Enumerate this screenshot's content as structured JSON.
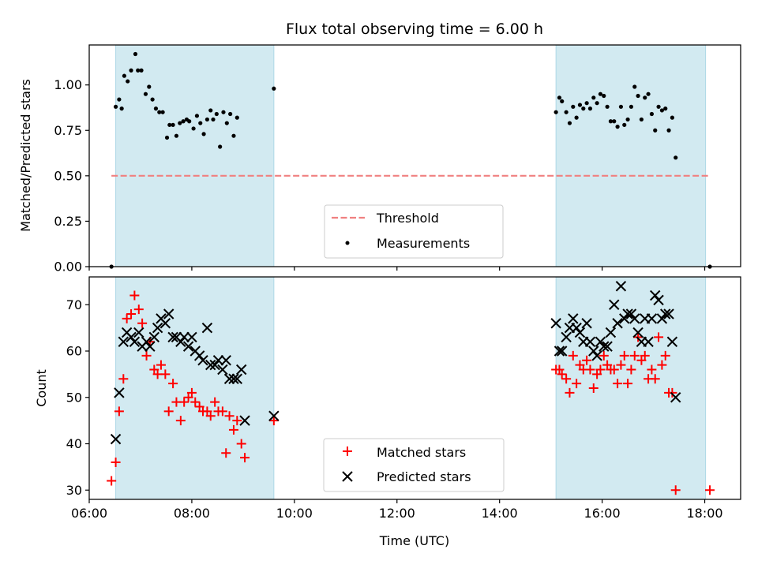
{
  "chart_data": [
    {
      "type": "scatter",
      "title": "Flux total observing time = 6.00 h",
      "xlabel": "",
      "ylabel": "Matched/Predicted stars",
      "xlim": [
        "06:00",
        "18:42"
      ],
      "ylim": [
        0,
        1.22
      ],
      "yticks": [
        0.0,
        0.25,
        0.5,
        0.75,
        1.0
      ],
      "ytick_labels": [
        "0.00",
        "0.25",
        "0.50",
        "0.75",
        "1.00"
      ],
      "shaded_intervals": [
        [
          "06:31",
          "09:36"
        ],
        [
          "15:06",
          "18:01"
        ]
      ],
      "shade_color": "#add8e6",
      "legend": {
        "position": "lower-center",
        "entries": [
          "Threshold",
          "Measurements"
        ]
      },
      "threshold": {
        "name": "Threshold",
        "y": 0.5,
        "x_range": [
          "06:26",
          "18:06"
        ],
        "color": "#f08080",
        "style": "dashed"
      },
      "series": [
        {
          "name": "Measurements",
          "marker": "dot",
          "color": "#000000",
          "points": [
            [
              "06:26",
              0.0
            ],
            [
              "06:31",
              0.88
            ],
            [
              "06:35",
              0.92
            ],
            [
              "06:38",
              0.87
            ],
            [
              "06:41",
              1.05
            ],
            [
              "06:45",
              1.02
            ],
            [
              "06:49",
              1.08
            ],
            [
              "06:54",
              1.17
            ],
            [
              "06:57",
              1.08
            ],
            [
              "07:01",
              1.08
            ],
            [
              "07:06",
              0.95
            ],
            [
              "07:10",
              0.99
            ],
            [
              "07:14",
              0.92
            ],
            [
              "07:18",
              0.87
            ],
            [
              "07:22",
              0.85
            ],
            [
              "07:26",
              0.85
            ],
            [
              "07:31",
              0.71
            ],
            [
              "07:34",
              0.78
            ],
            [
              "07:38",
              0.78
            ],
            [
              "07:42",
              0.72
            ],
            [
              "07:46",
              0.79
            ],
            [
              "07:50",
              0.8
            ],
            [
              "07:54",
              0.81
            ],
            [
              "07:57",
              0.8
            ],
            [
              "08:02",
              0.76
            ],
            [
              "08:06",
              0.83
            ],
            [
              "08:10",
              0.79
            ],
            [
              "08:14",
              0.73
            ],
            [
              "08:18",
              0.81
            ],
            [
              "08:22",
              0.86
            ],
            [
              "08:25",
              0.81
            ],
            [
              "08:29",
              0.84
            ],
            [
              "08:33",
              0.66
            ],
            [
              "08:37",
              0.85
            ],
            [
              "08:41",
              0.79
            ],
            [
              "08:45",
              0.84
            ],
            [
              "08:49",
              0.72
            ],
            [
              "08:53",
              0.82
            ],
            [
              "09:36",
              0.98
            ],
            [
              "15:06",
              0.85
            ],
            [
              "15:10",
              0.93
            ],
            [
              "15:13",
              0.91
            ],
            [
              "15:18",
              0.85
            ],
            [
              "15:22",
              0.79
            ],
            [
              "15:26",
              0.88
            ],
            [
              "15:30",
              0.82
            ],
            [
              "15:34",
              0.89
            ],
            [
              "15:38",
              0.87
            ],
            [
              "15:42",
              0.9
            ],
            [
              "15:46",
              0.87
            ],
            [
              "15:50",
              0.93
            ],
            [
              "15:54",
              0.9
            ],
            [
              "15:58",
              0.95
            ],
            [
              "16:02",
              0.94
            ],
            [
              "16:06",
              0.88
            ],
            [
              "16:10",
              0.8
            ],
            [
              "16:14",
              0.8
            ],
            [
              "16:18",
              0.77
            ],
            [
              "16:22",
              0.88
            ],
            [
              "16:26",
              0.78
            ],
            [
              "16:30",
              0.81
            ],
            [
              "16:34",
              0.88
            ],
            [
              "16:38",
              0.99
            ],
            [
              "16:42",
              0.94
            ],
            [
              "16:46",
              0.81
            ],
            [
              "16:50",
              0.93
            ],
            [
              "16:54",
              0.95
            ],
            [
              "16:58",
              0.84
            ],
            [
              "17:02",
              0.75
            ],
            [
              "17:06",
              0.88
            ],
            [
              "17:10",
              0.86
            ],
            [
              "17:14",
              0.87
            ],
            [
              "17:18",
              0.75
            ],
            [
              "17:22",
              0.82
            ],
            [
              "17:26",
              0.6
            ],
            [
              "18:06",
              0.0
            ]
          ]
        }
      ]
    },
    {
      "type": "scatter",
      "title": "",
      "xlabel": "Time (UTC)",
      "ylabel": "Count",
      "xlim": [
        "06:00",
        "18:42"
      ],
      "ylim": [
        28,
        76
      ],
      "yticks": [
        30,
        40,
        50,
        60,
        70
      ],
      "ytick_labels": [
        "30",
        "40",
        "50",
        "60",
        "70"
      ],
      "xticks": [
        "06:00",
        "08:00",
        "10:00",
        "12:00",
        "14:00",
        "16:00",
        "18:00"
      ],
      "xtick_labels": [
        "06:00",
        "08:00",
        "10:00",
        "12:00",
        "14:00",
        "16:00",
        "18:00"
      ],
      "shaded_intervals": [
        [
          "06:31",
          "09:36"
        ],
        [
          "15:06",
          "18:01"
        ]
      ],
      "shade_color": "#add8e6",
      "legend": {
        "position": "lower-center",
        "entries": [
          "Matched stars",
          "Predicted stars"
        ]
      },
      "series": [
        {
          "name": "Matched stars",
          "marker": "plus",
          "color": "#ff0000",
          "points": [
            [
              "06:26",
              32
            ],
            [
              "06:31",
              36
            ],
            [
              "06:35",
              47
            ],
            [
              "06:40",
              54
            ],
            [
              "06:44",
              67
            ],
            [
              "06:49",
              68
            ],
            [
              "06:53",
              72
            ],
            [
              "06:58",
              69
            ],
            [
              "07:02",
              66
            ],
            [
              "07:07",
              59
            ],
            [
              "07:11",
              62
            ],
            [
              "07:16",
              56
            ],
            [
              "07:20",
              55
            ],
            [
              "07:24",
              57
            ],
            [
              "07:29",
              55
            ],
            [
              "07:33",
              47
            ],
            [
              "07:38",
              53
            ],
            [
              "07:42",
              49
            ],
            [
              "07:47",
              45
            ],
            [
              "07:51",
              49
            ],
            [
              "07:56",
              50
            ],
            [
              "08:00",
              51
            ],
            [
              "08:04",
              49
            ],
            [
              "08:09",
              48
            ],
            [
              "08:13",
              47
            ],
            [
              "08:18",
              47
            ],
            [
              "08:22",
              46
            ],
            [
              "08:27",
              49
            ],
            [
              "08:31",
              47
            ],
            [
              "08:36",
              47
            ],
            [
              "08:40",
              38
            ],
            [
              "08:44",
              46
            ],
            [
              "08:49",
              43
            ],
            [
              "08:53",
              45
            ],
            [
              "08:58",
              40
            ],
            [
              "09:02",
              37
            ],
            [
              "09:36",
              45
            ],
            [
              "15:06",
              56
            ],
            [
              "15:10",
              56
            ],
            [
              "15:13",
              55
            ],
            [
              "15:18",
              54
            ],
            [
              "15:22",
              51
            ],
            [
              "15:26",
              59
            ],
            [
              "15:30",
              53
            ],
            [
              "15:34",
              57
            ],
            [
              "15:38",
              56
            ],
            [
              "15:42",
              58
            ],
            [
              "15:46",
              56
            ],
            [
              "15:50",
              52
            ],
            [
              "15:54",
              55
            ],
            [
              "15:58",
              56
            ],
            [
              "16:02",
              59
            ],
            [
              "16:06",
              57
            ],
            [
              "16:10",
              56
            ],
            [
              "16:14",
              56
            ],
            [
              "16:18",
              53
            ],
            [
              "16:22",
              57
            ],
            [
              "16:26",
              59
            ],
            [
              "16:30",
              53
            ],
            [
              "16:34",
              56
            ],
            [
              "16:38",
              59
            ],
            [
              "16:42",
              63
            ],
            [
              "16:46",
              58
            ],
            [
              "16:50",
              59
            ],
            [
              "16:54",
              54
            ],
            [
              "16:58",
              56
            ],
            [
              "17:02",
              54
            ],
            [
              "17:06",
              63
            ],
            [
              "17:10",
              57
            ],
            [
              "17:14",
              59
            ],
            [
              "17:18",
              51
            ],
            [
              "17:22",
              51
            ],
            [
              "17:26",
              30
            ],
            [
              "18:06",
              30
            ]
          ]
        },
        {
          "name": "Predicted stars",
          "marker": "x",
          "color": "#000000",
          "points": [
            [
              "06:31",
              41
            ],
            [
              "06:35",
              51
            ],
            [
              "06:40",
              62
            ],
            [
              "06:44",
              64
            ],
            [
              "06:49",
              63
            ],
            [
              "06:53",
              62
            ],
            [
              "06:58",
              64
            ],
            [
              "07:02",
              61
            ],
            [
              "07:07",
              62
            ],
            [
              "07:11",
              61
            ],
            [
              "07:16",
              63
            ],
            [
              "07:20",
              65
            ],
            [
              "07:24",
              67
            ],
            [
              "07:29",
              66
            ],
            [
              "07:33",
              68
            ],
            [
              "07:38",
              63
            ],
            [
              "07:42",
              63
            ],
            [
              "07:47",
              62
            ],
            [
              "07:51",
              63
            ],
            [
              "07:56",
              61
            ],
            [
              "08:00",
              63
            ],
            [
              "08:04",
              60
            ],
            [
              "08:09",
              59
            ],
            [
              "08:13",
              58
            ],
            [
              "08:18",
              65
            ],
            [
              "08:22",
              57
            ],
            [
              "08:27",
              57
            ],
            [
              "08:31",
              58
            ],
            [
              "08:36",
              56
            ],
            [
              "08:40",
              58
            ],
            [
              "08:44",
              54
            ],
            [
              "08:49",
              54
            ],
            [
              "08:53",
              54
            ],
            [
              "08:58",
              56
            ],
            [
              "09:02",
              45
            ],
            [
              "09:36",
              46
            ],
            [
              "15:06",
              66
            ],
            [
              "15:10",
              60
            ],
            [
              "15:13",
              60
            ],
            [
              "15:18",
              63
            ],
            [
              "15:22",
              65
            ],
            [
              "15:26",
              67
            ],
            [
              "15:30",
              65
            ],
            [
              "15:34",
              64
            ],
            [
              "15:38",
              62
            ],
            [
              "15:42",
              66
            ],
            [
              "15:46",
              62
            ],
            [
              "15:50",
              60
            ],
            [
              "15:54",
              59
            ],
            [
              "15:58",
              62
            ],
            [
              "16:02",
              61
            ],
            [
              "16:06",
              61
            ],
            [
              "16:10",
              64
            ],
            [
              "16:14",
              70
            ],
            [
              "16:18",
              66
            ],
            [
              "16:22",
              74
            ],
            [
              "16:26",
              67
            ],
            [
              "16:30",
              68
            ],
            [
              "16:34",
              68
            ],
            [
              "16:38",
              67
            ],
            [
              "16:42",
              64
            ],
            [
              "16:46",
              62
            ],
            [
              "16:50",
              67
            ],
            [
              "16:54",
              62
            ],
            [
              "16:58",
              67
            ],
            [
              "17:02",
              72
            ],
            [
              "17:06",
              71
            ],
            [
              "17:10",
              67
            ],
            [
              "17:14",
              68
            ],
            [
              "17:18",
              68
            ],
            [
              "17:22",
              62
            ],
            [
              "17:26",
              50
            ]
          ]
        }
      ]
    }
  ]
}
